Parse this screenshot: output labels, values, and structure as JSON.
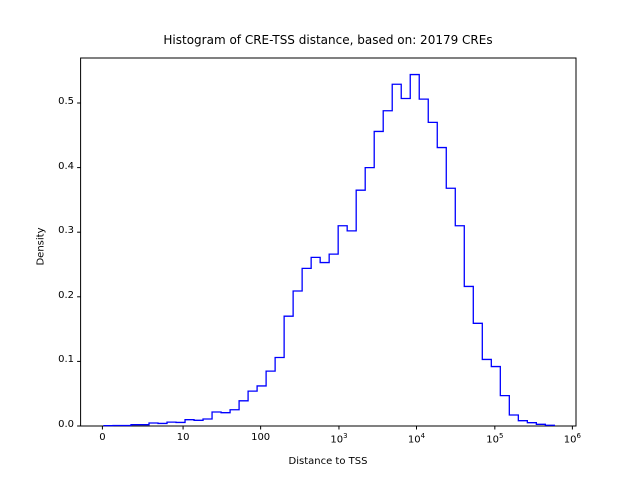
{
  "figure": {
    "title": "Histogram of CRE-TSS distance, based on: 20179 CREs",
    "background": "#ffffff"
  },
  "chart_data": {
    "type": "bar",
    "subtype": "step-histogram-outline",
    "title": "Histogram of CRE-TSS distance, based on: 20179 CREs",
    "xlabel": "Distance to TSS",
    "ylabel": "Density",
    "n_samples": 20179,
    "line_color": "#0000ff",
    "axis_color": "#000000",
    "grid": false,
    "legend": false,
    "x_scale": "symlog: linear from 0 to 10, then logarithmic; axis units u = x/10 for x<=10, u = 1+log10(x/10) for x>10",
    "xlim_units": [
      -0.28,
      6.05
    ],
    "ylim": [
      0,
      0.57
    ],
    "bin_start_unit": 0.02,
    "bin_width_unit": 0.115,
    "densities": [
      0.0006,
      0.0008,
      0.0008,
      0.002,
      0.002,
      0.0046,
      0.004,
      0.006,
      0.0055,
      0.0098,
      0.0088,
      0.0108,
      0.0217,
      0.0206,
      0.0252,
      0.039,
      0.054,
      0.062,
      0.085,
      0.106,
      0.17,
      0.209,
      0.244,
      0.261,
      0.253,
      0.266,
      0.31,
      0.302,
      0.365,
      0.4,
      0.456,
      0.488,
      0.529,
      0.507,
      0.544,
      0.506,
      0.47,
      0.431,
      0.368,
      0.31,
      0.216,
      0.159,
      0.103,
      0.092,
      0.047,
      0.017,
      0.0082,
      0.0051,
      0.0026,
      0.0012
    ],
    "xticks": [
      {
        "u": 0.0,
        "text": "0",
        "exp": null
      },
      {
        "u": 1.03,
        "text": "10",
        "exp": null
      },
      {
        "u": 2.02,
        "text": "100",
        "exp": null
      },
      {
        "u": 3.02,
        "text": "10",
        "exp": "3"
      },
      {
        "u": 4.01,
        "text": "10",
        "exp": "4"
      },
      {
        "u": 5.01,
        "text": "10",
        "exp": "5"
      },
      {
        "u": 6.0,
        "text": "10",
        "exp": "6"
      }
    ],
    "yticks": [
      {
        "v": 0.0,
        "text": "0.0"
      },
      {
        "v": 0.1,
        "text": "0.1"
      },
      {
        "v": 0.2,
        "text": "0.2"
      },
      {
        "v": 0.3,
        "text": "0.3"
      },
      {
        "v": 0.4,
        "text": "0.4"
      },
      {
        "v": 0.5,
        "text": "0.5"
      }
    ]
  }
}
